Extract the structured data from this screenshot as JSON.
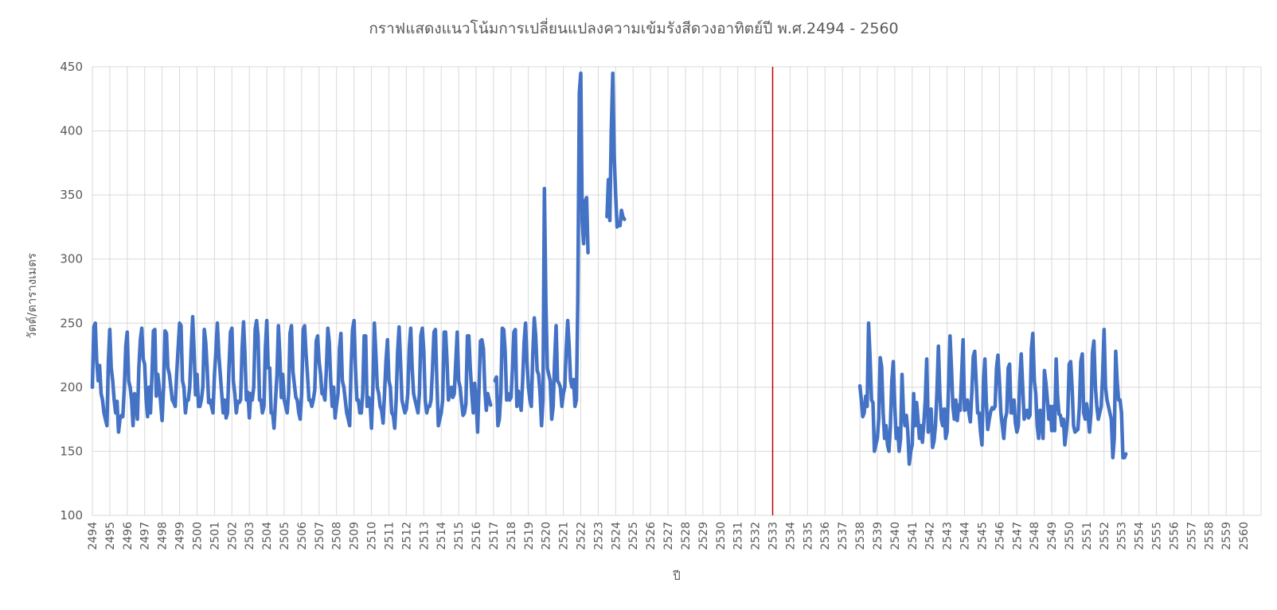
{
  "chart_data": {
    "type": "line",
    "title": "กราฟแสดงแนวโน้มการเปลี่ยนแปลงความเข้มรังสีดวงอาทิตย์ปี พ.ศ.2494 - 2560",
    "xlabel": "ปี",
    "ylabel": "วัตต์/ตารางเมตร",
    "ylim": [
      100,
      450
    ],
    "yticks": [
      100,
      150,
      200,
      250,
      300,
      350,
      400,
      450
    ],
    "grid": true,
    "legend": "none",
    "x_categories": [
      "2494",
      "2495",
      "2496",
      "2497",
      "2498",
      "2499",
      "2500",
      "2501",
      "2502",
      "2503",
      "2504",
      "2505",
      "2506",
      "2507",
      "2508",
      "2509",
      "2510",
      "2511",
      "2512",
      "2513",
      "2514",
      "2515",
      "2516",
      "2517",
      "2518",
      "2519",
      "2520",
      "2521",
      "2522",
      "2523",
      "2524",
      "2525",
      "2526",
      "2527",
      "2528",
      "2529",
      "2530",
      "2531",
      "2532",
      "2533",
      "2534",
      "2535",
      "2536",
      "2537",
      "2538",
      "2539",
      "2540",
      "2541",
      "2542",
      "2543",
      "2544",
      "2545",
      "2546",
      "2547",
      "2548",
      "2549",
      "2550",
      "2551",
      "2552",
      "2553",
      "2554",
      "2555",
      "2556",
      "2557",
      "2558",
      "2559",
      "2560"
    ],
    "marker_line": {
      "x": "2533",
      "color": "#c00000"
    },
    "series": [
      {
        "color": "#4472c4",
        "segments": [
          {
            "start": "2494",
            "months": 389,
            "values": [
              200,
              247,
              250,
              220,
              205,
              217,
              195,
              190,
              180,
              175,
              170,
              220,
              245,
              215,
              205,
              190,
              180,
              189,
              165,
              175,
              178,
              177,
              200,
              232,
              243,
              205,
              200,
              190,
              170,
              195,
              192,
              175,
              215,
              237,
              246,
              222,
              218,
              190,
              177,
              200,
              180,
              210,
              244,
              245,
              193,
              210,
              200,
              188,
              174,
              200,
              244,
              242,
              215,
              210,
              200,
              190,
              188,
              185,
              210,
              230,
              250,
              248,
              205,
              200,
              180,
              190,
              190,
              200,
              230,
              255,
              228,
              194,
              210,
              185,
              185,
              190,
              200,
              245,
              235,
              215,
              188,
              190,
              185,
              180,
              210,
              228,
              250,
              225,
              210,
              195,
              180,
              190,
              176,
              180,
              215,
              243,
              246,
              205,
              195,
              180,
              189,
              188,
              190,
              230,
              251,
              225,
              190,
              196,
              176,
              195,
              190,
              200,
              245,
              252,
              240,
              190,
              190,
              180,
              185,
              230,
              252,
              215,
              215,
              180,
              180,
              168,
              190,
              210,
              248,
              225,
              192,
              210,
              190,
              185,
              180,
              195,
              242,
              248,
              212,
              202,
              192,
              190,
              180,
              175,
              195,
              245,
              248,
              226,
              210,
              190,
              190,
              185,
              190,
              198,
              236,
              240,
              220,
              210,
              195,
              195,
              190,
              215,
              246,
              235,
              205,
              185,
              200,
              176,
              186,
              195,
              230,
              242,
              205,
              200,
              190,
              180,
              175,
              170,
              215,
              245,
              252,
              215,
              190,
              190,
              180,
              180,
              195,
              240,
              240,
              185,
              192,
              190,
              168,
              200,
              250,
              228,
              200,
              195,
              185,
              182,
              172,
              195,
              220,
              237,
              205,
              200,
              180,
              178,
              168,
              190,
              227,
              247,
              220,
              190,
              185,
              180,
              183,
              195,
              230,
              246,
              215,
              195,
              190,
              185,
              180,
              195,
              240,
              246,
              228,
              190,
              180,
              185,
              185,
              190,
              215,
              243,
              245,
              205,
              170,
              175,
              180,
              190,
              243,
              243,
              220,
              190,
              195,
              200,
              192,
              195,
              220,
              243,
              205,
              200,
              188,
              178,
              180,
              187,
              240,
              240,
              215,
              195,
              180,
              203,
              190,
              165,
              200,
              236,
              237,
              230,
              198,
              182,
              195,
              190,
              186,
              null,
              null,
              205,
              208,
              170,
              175,
              195,
              246,
              245,
              228,
              190,
              195,
              190,
              192,
              215,
              243,
              245,
              185,
              197,
              190,
              182,
              205,
              235,
              250,
              220,
              200,
              190,
              185,
              225,
              254,
              240,
              213,
              210,
              195,
              170,
              190,
              355,
              265,
              215,
              210,
              205,
              175,
              185,
              220,
              248,
              205,
              203,
              200,
              185,
              195,
              200,
              230,
              252,
              232,
              205,
              200,
              206,
              185,
              190,
              270,
              430,
              445,
              330,
              312,
              345,
              348,
              305,
              null,
              null,
              null,
              null,
              null,
              null,
              null,
              null,
              null,
              null,
              null,
              null,
              333,
              362,
              330,
              400,
              445,
              380,
              350,
              325,
              327,
              326,
              338,
              333,
              331,
              null,
              null,
              null,
              null,
              null,
              null,
              null,
              null,
              null,
              null,
              null,
              null,
              null,
              null,
              null,
              null,
              null,
              null,
              null,
              null,
              null,
              null,
              null,
              null,
              null,
              null,
              null,
              null,
              null,
              null,
              null,
              null,
              null,
              null,
              null,
              null,
              null,
              null,
              null,
              null,
              null,
              null,
              null,
              null,
              null,
              null,
              null,
              null,
              null,
              null,
              null,
              null,
              null,
              null,
              null,
              null,
              null,
              null
            ]
          },
          {
            "start": "2538",
            "months": 271,
            "values": [
              201,
              190,
              177,
              180,
              193,
              185,
              250,
              224,
              190,
              188,
              150,
              155,
              160,
              176,
              223,
              216,
              180,
              160,
              170,
              155,
              150,
              170,
              205,
              220,
              185,
              160,
              168,
              150,
              160,
              210,
              180,
              170,
              178,
              165,
              140,
              150,
              155,
              195,
              170,
              188,
              175,
              160,
              170,
              157,
              172,
              190,
              222,
              165,
              168,
              183,
              153,
              158,
              170,
              195,
              232,
              195,
              175,
              170,
              183,
              160,
              165,
              200,
              240,
              215,
              185,
              175,
              190,
              174,
              186,
              182,
              210,
              237,
              182,
              183,
              190,
              180,
              173,
              196,
              224,
              228,
              205,
              180,
              180,
              165,
              155,
              205,
              222,
              188,
              167,
              175,
              181,
              184,
              183,
              185,
              215,
              225,
              205,
              180,
              170,
              160,
              175,
              180,
              215,
              218,
              180,
              180,
              190,
              172,
              165,
              170,
              205,
              226,
              200,
              175,
              180,
              182,
              176,
              178,
              230,
              242,
              205,
              195,
              170,
              160,
              182,
              175,
              160,
              213,
              203,
              190,
              175,
              185,
              166,
              185,
              166,
              222,
              193,
              179,
              178,
              170,
              175,
              155,
              165,
              178,
              218,
              220,
              200,
              170,
              165,
              166,
              167,
              185,
              220,
              226,
              180,
              175,
              187,
              178,
              165,
              180,
              227,
              236,
              200,
              185,
              175,
              180,
              185,
              210,
              245,
              200,
              190,
              185,
              180,
              175,
              145,
              160,
              228,
              205,
              190,
              190,
              180,
              145,
              145,
              148,
              null,
              null,
              null,
              null,
              null,
              null,
              null,
              null,
              null,
              null,
              null,
              null,
              null,
              null,
              null,
              null,
              null,
              null,
              null,
              null,
              null,
              null,
              null,
              null,
              null,
              null,
              null,
              null,
              null,
              null,
              null,
              null,
              null,
              null,
              null,
              null,
              null,
              null,
              null,
              null,
              null,
              null,
              null,
              null,
              null,
              null,
              null,
              null,
              null,
              null,
              null,
              null,
              null,
              null,
              null,
              null,
              null,
              null,
              null,
              null,
              null,
              null,
              null,
              null,
              null,
              null,
              null,
              null,
              null,
              null,
              null,
              null,
              null,
              null,
              null,
              null,
              null,
              null,
              null,
              null,
              null,
              null,
              null,
              null,
              null,
              null,
              null
            ]
          }
        ]
      }
    ]
  }
}
